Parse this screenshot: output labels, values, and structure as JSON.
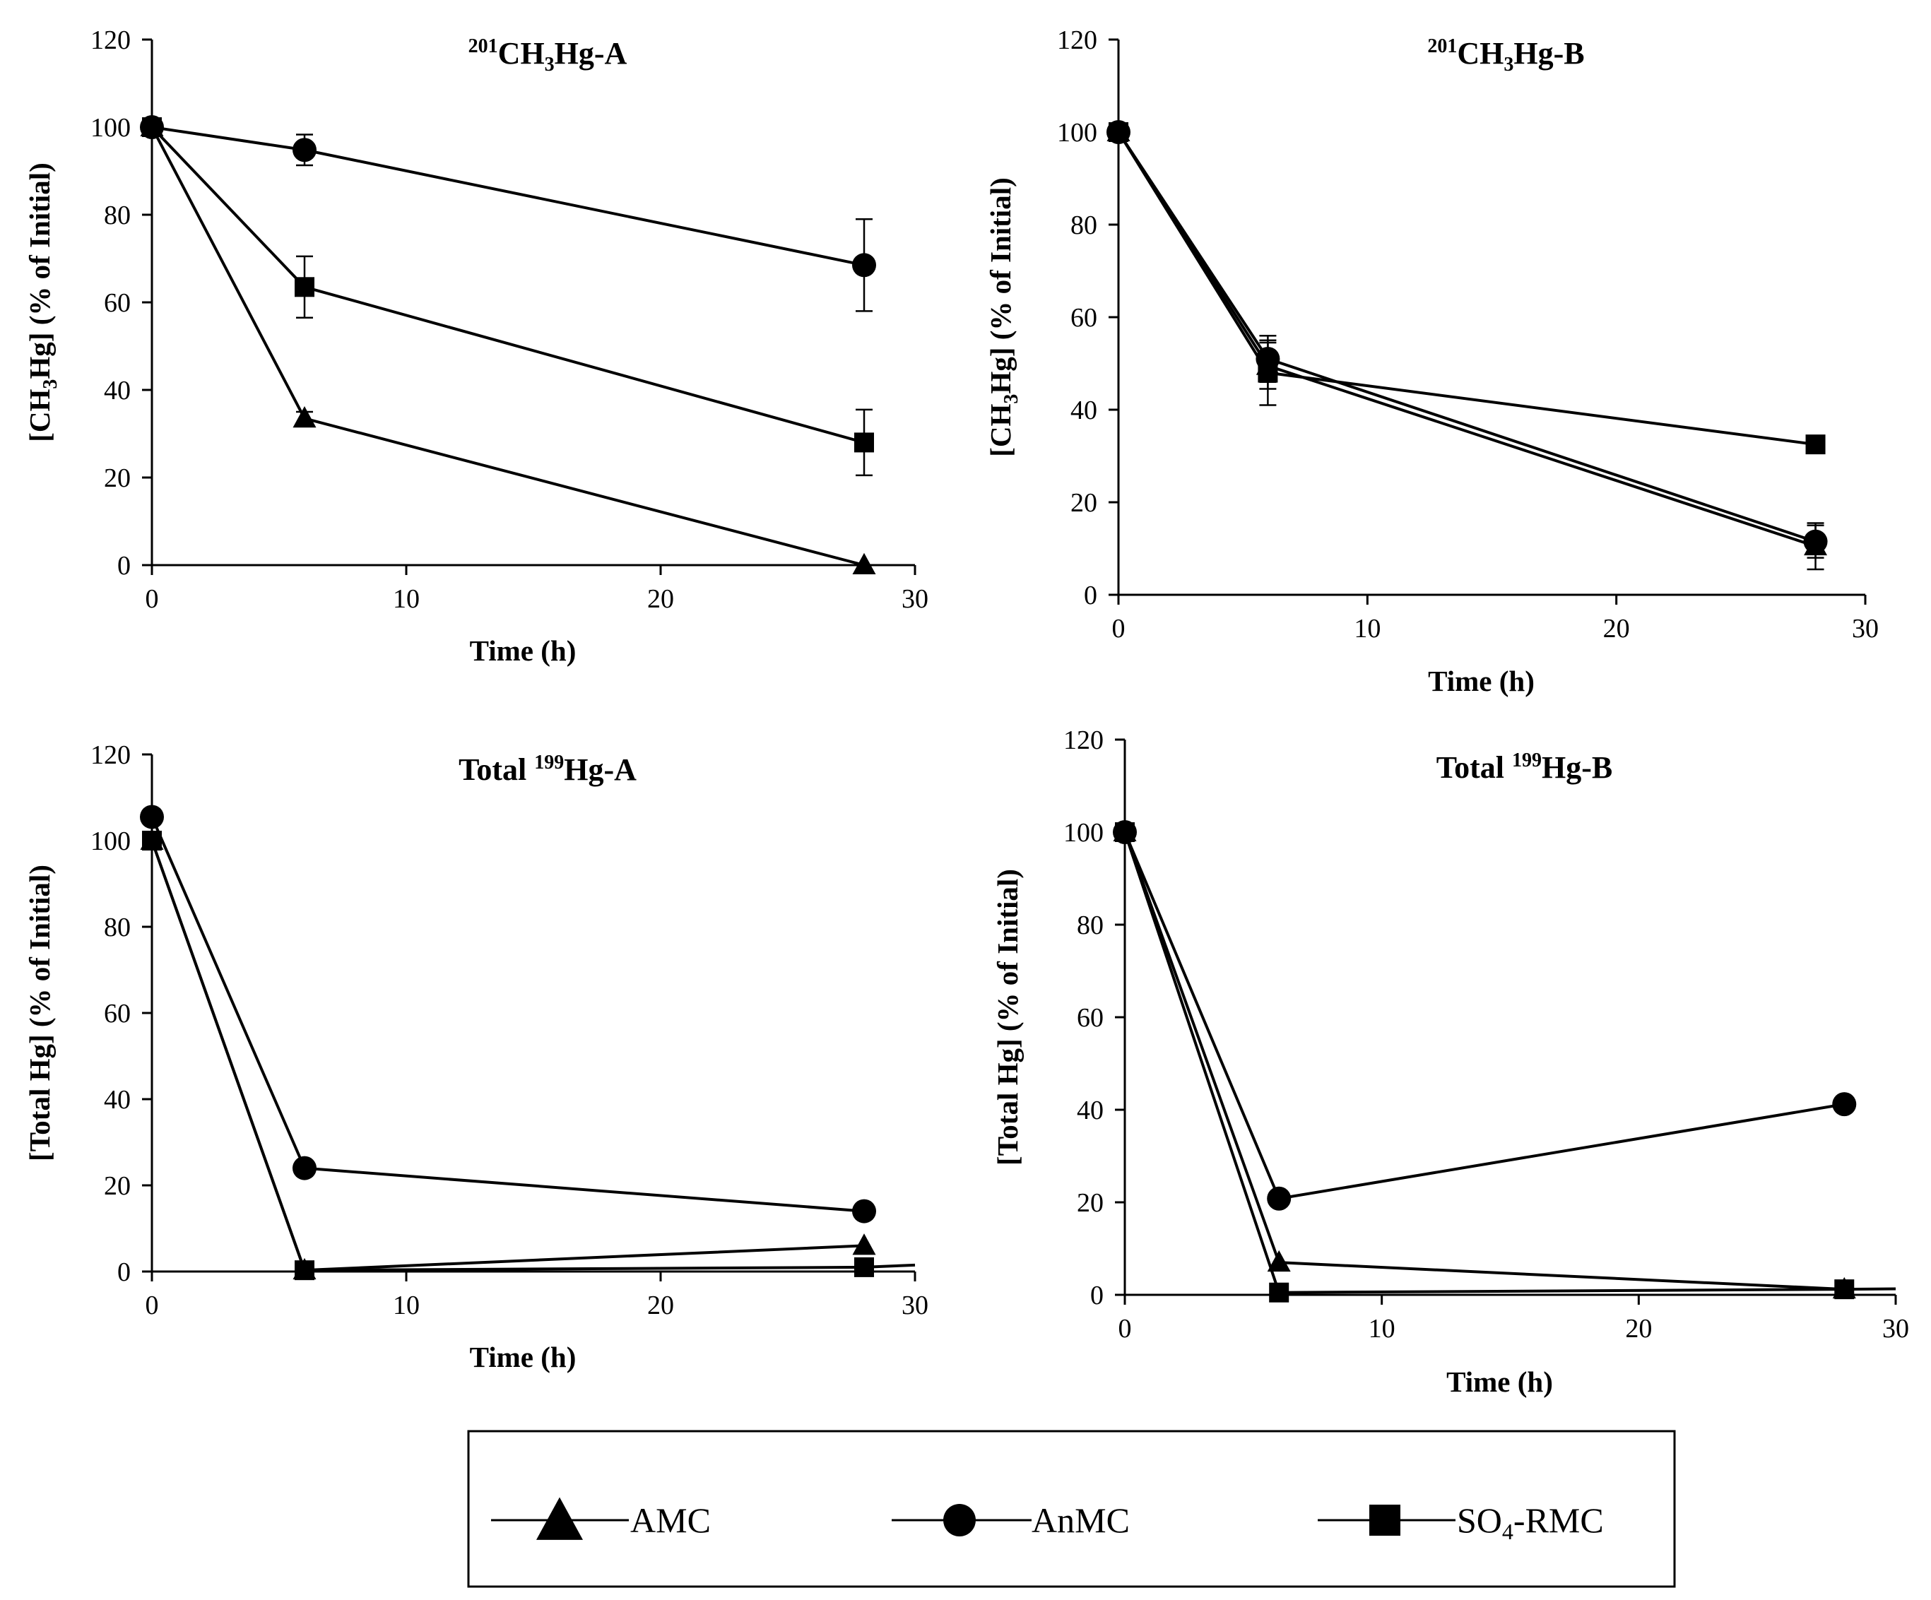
{
  "chart_data": [
    {
      "type": "line",
      "title_sup": "201",
      "title_main": "CH",
      "title_sub": "3",
      "title_tail": "Hg-A",
      "ylabel_pre": "[CH",
      "ylabel_sub": "3",
      "ylabel_post": "Hg] (% of Initial)",
      "xlabel": "Time (h)",
      "xlim": [
        0,
        30
      ],
      "ylim": [
        0,
        120
      ],
      "xticks": [
        0,
        10,
        20,
        30
      ],
      "yticks": [
        0,
        20,
        40,
        60,
        80,
        100,
        120
      ],
      "x": [
        0,
        6,
        28
      ],
      "series": [
        {
          "name": "AMC",
          "marker": "triangle",
          "values": [
            100,
            33.5,
            0
          ],
          "errors": [
            0,
            1.5,
            0
          ]
        },
        {
          "name": "AnMC",
          "marker": "circle",
          "values": [
            100,
            94.8,
            68.5
          ],
          "errors": [
            0,
            3.5,
            10.5
          ]
        },
        {
          "name": "SO4-RMC",
          "marker": "square",
          "values": [
            100,
            63.5,
            28
          ],
          "errors": [
            0,
            7,
            7.5
          ]
        }
      ]
    },
    {
      "type": "line",
      "title_sup": "201",
      "title_main": "CH",
      "title_sub": "3",
      "title_tail": "Hg-B",
      "ylabel_pre": "[CH",
      "ylabel_sub": "3",
      "ylabel_post": "Hg] (% of Initial)",
      "xlabel": "Time (h)",
      "xlim": [
        0,
        30
      ],
      "ylim": [
        0,
        120
      ],
      "xticks": [
        0,
        10,
        20,
        30
      ],
      "yticks": [
        0,
        20,
        40,
        60,
        80,
        100,
        120
      ],
      "x": [
        0,
        6,
        28
      ],
      "series": [
        {
          "name": "AMC",
          "marker": "triangle",
          "values": [
            100,
            49.5,
            10.5
          ],
          "errors": [
            0,
            5,
            5
          ]
        },
        {
          "name": "AnMC",
          "marker": "circle",
          "values": [
            100,
            51,
            11.5
          ],
          "errors": [
            0,
            5,
            3.5
          ]
        },
        {
          "name": "SO4-RMC",
          "marker": "square",
          "values": [
            100,
            48,
            32.5
          ],
          "errors": [
            0,
            7,
            0
          ]
        }
      ]
    },
    {
      "type": "line",
      "title_pre": "Total ",
      "title_sup": "199",
      "title_tail": "Hg-A",
      "ylabel": "[Total  Hg] (% of Initial)",
      "xlabel": "Time (h)",
      "xlim": [
        0,
        30
      ],
      "ylim": [
        0,
        120
      ],
      "xticks": [
        0,
        10,
        20,
        30
      ],
      "yticks": [
        0,
        20,
        40,
        60,
        80,
        100,
        120
      ],
      "x": [
        0,
        6,
        28
      ],
      "trend_end": 1.5,
      "series": [
        {
          "name": "AMC",
          "marker": "triangle",
          "values": [
            100,
            0.3,
            6
          ],
          "errors": [
            0,
            0,
            0
          ]
        },
        {
          "name": "AnMC",
          "marker": "circle",
          "values": [
            105.5,
            24,
            14
          ],
          "errors": [
            0,
            0,
            0
          ]
        },
        {
          "name": "SO4-RMC",
          "marker": "square",
          "values": [
            100,
            0.3,
            1
          ],
          "errors": [
            0,
            0,
            0
          ]
        }
      ]
    },
    {
      "type": "line",
      "title_pre": "Total ",
      "title_sup": "199",
      "title_tail": "Hg-B",
      "ylabel": "[Total  Hg] (% of Initial)",
      "xlabel": "Time (h)",
      "xlim": [
        0,
        30
      ],
      "ylim": [
        0,
        120
      ],
      "xticks": [
        0,
        10,
        20,
        30
      ],
      "yticks": [
        0,
        20,
        40,
        60,
        80,
        100,
        120
      ],
      "x": [
        0,
        6,
        28
      ],
      "trend_end": 1.3,
      "series": [
        {
          "name": "AMC",
          "marker": "triangle",
          "values": [
            100,
            7,
            1.2
          ],
          "errors": [
            0,
            0,
            0
          ]
        },
        {
          "name": "AnMC",
          "marker": "circle",
          "values": [
            100,
            20.8,
            41.2
          ],
          "errors": [
            0,
            0,
            0
          ]
        },
        {
          "name": "SO4-RMC",
          "marker": "square",
          "values": [
            100,
            0.5,
            1.2
          ],
          "errors": [
            0,
            0,
            0
          ]
        }
      ]
    }
  ],
  "legend": {
    "placement": "bottom-center",
    "items": [
      {
        "label": "AMC",
        "marker": "triangle"
      },
      {
        "label": "AnMC",
        "marker": "circle"
      },
      {
        "label_main": "SO",
        "label_sub": "4",
        "label_tail": "-RMC",
        "marker": "square"
      }
    ]
  }
}
